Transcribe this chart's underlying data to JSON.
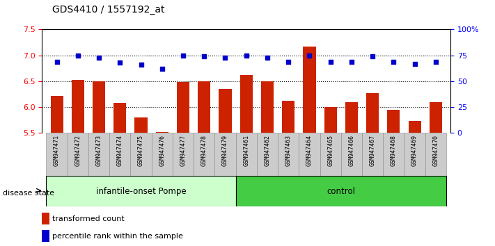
{
  "title": "GDS4410 / 1557192_at",
  "samples": [
    "GSM947471",
    "GSM947472",
    "GSM947473",
    "GSM947474",
    "GSM947475",
    "GSM947476",
    "GSM947477",
    "GSM947478",
    "GSM947479",
    "GSM947461",
    "GSM947462",
    "GSM947463",
    "GSM947464",
    "GSM947465",
    "GSM947466",
    "GSM947467",
    "GSM947468",
    "GSM947469",
    "GSM947470"
  ],
  "red_values": [
    6.22,
    6.53,
    6.5,
    6.08,
    5.8,
    5.52,
    6.48,
    6.5,
    6.35,
    6.62,
    6.5,
    6.12,
    7.17,
    6.0,
    6.1,
    6.27,
    5.95,
    5.73,
    6.1
  ],
  "blue_values_pct": [
    69,
    75,
    73,
    68,
    66,
    62,
    75,
    74,
    73,
    75,
    73,
    69,
    75,
    69,
    69,
    74,
    69,
    67,
    69
  ],
  "group1_count": 9,
  "group2_count": 10,
  "group1_label": "infantile-onset Pompe",
  "group2_label": "control",
  "disease_state_label": "disease state",
  "legend_red": "transformed count",
  "legend_blue": "percentile rank within the sample",
  "ylim_left": [
    5.5,
    7.5
  ],
  "ylim_right": [
    0,
    100
  ],
  "yticks_left": [
    5.5,
    6.0,
    6.5,
    7.0,
    7.5
  ],
  "yticks_right": [
    0,
    25,
    50,
    75,
    100
  ],
  "ytick_labels_right": [
    "0",
    "25",
    "50",
    "75",
    "100%"
  ],
  "hlines": [
    6.0,
    6.5,
    7.0
  ],
  "bar_color": "#cc2200",
  "dot_color": "#0000cc",
  "group1_bg": "#ccffcc",
  "group2_bg": "#44cc44",
  "header_bg": "#cccccc",
  "bar_width": 0.6
}
